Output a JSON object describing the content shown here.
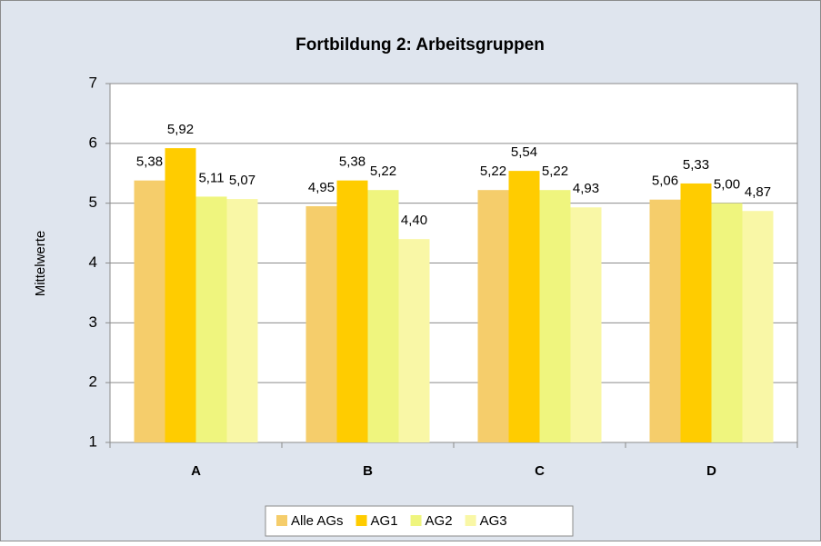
{
  "chart_data": {
    "type": "bar",
    "title": "Fortbildung 2: Arbeitsgruppen",
    "y_label": "Mittelwerte",
    "categories": [
      "A",
      "B",
      "C",
      "D"
    ],
    "series": [
      {
        "name": "Alle AGs",
        "color": "#f5cd6b",
        "values": [
          5.38,
          4.95,
          5.22,
          5.06
        ],
        "value_labels": [
          "5,38",
          "4,95",
          "5,22",
          "5,06"
        ]
      },
      {
        "name": "AG1",
        "color": "#ffcc00",
        "values": [
          5.92,
          5.38,
          5.54,
          5.33
        ],
        "value_labels": [
          "5,92",
          "5,38",
          "5,54",
          "5,33"
        ]
      },
      {
        "name": "AG2",
        "color": "#eff57e",
        "values": [
          5.11,
          5.22,
          5.22,
          5.0
        ],
        "value_labels": [
          "5,11",
          "5,22",
          "5,22",
          "5,00"
        ]
      },
      {
        "name": "AG3",
        "color": "#f9f7a6",
        "values": [
          5.07,
          4.4,
          4.93,
          4.87
        ],
        "value_labels": [
          "5,07",
          "4,40",
          "4,93",
          "4,87"
        ]
      }
    ],
    "ylim": [
      1,
      7
    ],
    "yticks": [
      1,
      2,
      3,
      4,
      5,
      6,
      7
    ],
    "grid": true,
    "legend": "bottom"
  }
}
